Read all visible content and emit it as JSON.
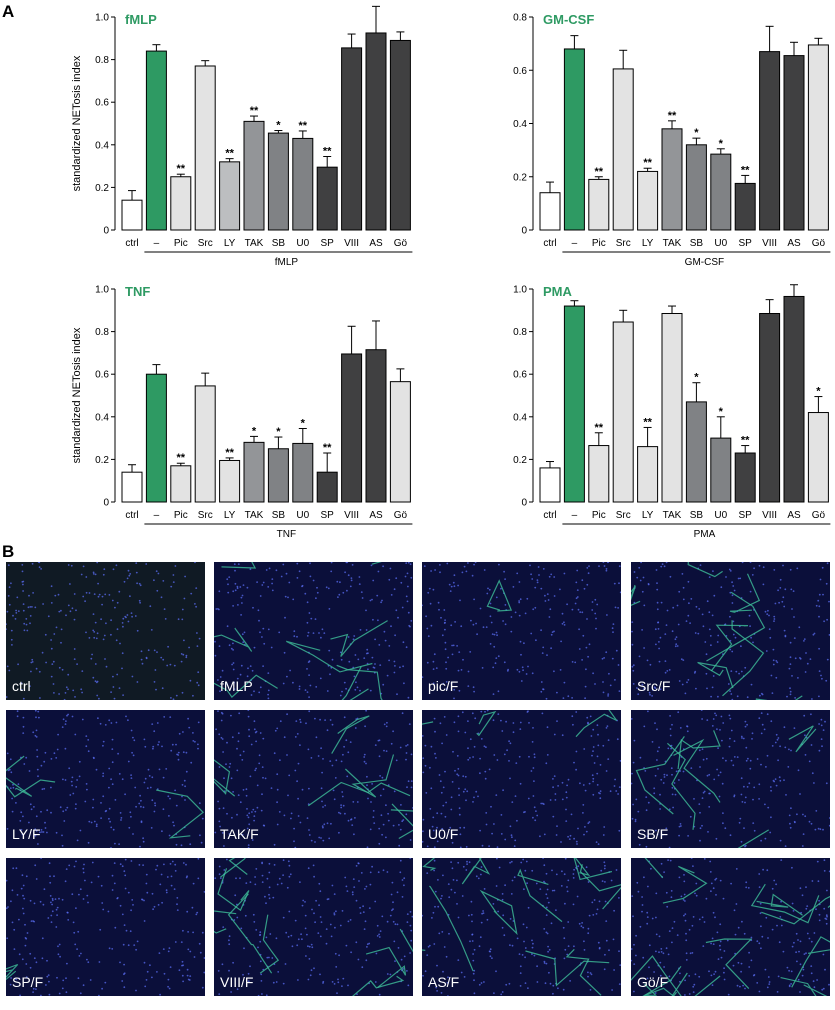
{
  "panel_a_letter": "A",
  "panel_b_letter": "B",
  "colors": {
    "green": "#2e9a63",
    "white_bar": "#ffffff",
    "light_gray": "#e3e3e3",
    "mid_gray": "#bcbec0",
    "gray": "#939598",
    "dark_gray": "#808285",
    "darker_gray": "#404041",
    "title_green": "#2e9a63"
  },
  "chart_data": [
    {
      "type": "bar",
      "title": "fMLP",
      "ylabel": "standardized NETosis index",
      "xgroup_label": "fMLP",
      "ylim": [
        0,
        1.0
      ],
      "yticks": [
        "0",
        "0.2",
        "0.4",
        "0.6",
        "0.8",
        "1.0"
      ],
      "categories": [
        "ctrl",
        "–",
        "Pic",
        "Src",
        "LY",
        "TAK",
        "SB",
        "U0",
        "SP",
        "VIII",
        "AS",
        "Gö"
      ],
      "values": [
        0.14,
        0.84,
        0.25,
        0.77,
        0.32,
        0.51,
        0.455,
        0.43,
        0.295,
        0.855,
        0.925,
        0.89
      ],
      "errors": [
        0.045,
        0.03,
        0.012,
        0.025,
        0.015,
        0.025,
        0.012,
        0.035,
        0.05,
        0.065,
        0.125,
        0.04
      ],
      "significance": [
        "",
        "",
        "**",
        "",
        "**",
        "**",
        "*",
        "**",
        "**",
        "",
        "",
        ""
      ],
      "bar_colors": [
        "white_bar",
        "green",
        "light_gray",
        "light_gray",
        "mid_gray",
        "gray",
        "dark_gray",
        "dark_gray",
        "darker_gray",
        "darker_gray",
        "darker_gray",
        "darker_gray"
      ]
    },
    {
      "type": "bar",
      "title": "GM-CSF",
      "ylabel": "",
      "xgroup_label": "GM-CSF",
      "ylim": [
        0,
        0.8
      ],
      "yticks": [
        "0",
        "0.2",
        "0.4",
        "0.6",
        "0.8"
      ],
      "categories": [
        "ctrl",
        "–",
        "Pic",
        "Src",
        "LY",
        "TAK",
        "SB",
        "U0",
        "SP",
        "VIII",
        "AS",
        "Gö"
      ],
      "values": [
        0.14,
        0.68,
        0.19,
        0.605,
        0.22,
        0.38,
        0.32,
        0.285,
        0.175,
        0.67,
        0.655,
        0.695
      ],
      "errors": [
        0.04,
        0.05,
        0.01,
        0.07,
        0.012,
        0.03,
        0.025,
        0.02,
        0.03,
        0.095,
        0.05,
        0.025
      ],
      "significance": [
        "",
        "",
        "**",
        "",
        "**",
        "**",
        "*",
        "*",
        "**",
        "",
        "",
        ""
      ],
      "bar_colors": [
        "white_bar",
        "green",
        "light_gray",
        "light_gray",
        "light_gray",
        "gray",
        "dark_gray",
        "dark_gray",
        "darker_gray",
        "darker_gray",
        "darker_gray",
        "light_gray"
      ]
    },
    {
      "type": "bar",
      "title": "TNF",
      "ylabel": "standardized NETosis index",
      "xgroup_label": "TNF",
      "ylim": [
        0,
        1.0
      ],
      "yticks": [
        "0",
        "0.2",
        "0.4",
        "0.6",
        "0.8",
        "1.0"
      ],
      "categories": [
        "ctrl",
        "–",
        "Pic",
        "Src",
        "LY",
        "TAK",
        "SB",
        "U0",
        "SP",
        "VIII",
        "AS",
        "Gö"
      ],
      "values": [
        0.14,
        0.6,
        0.17,
        0.545,
        0.195,
        0.28,
        0.25,
        0.275,
        0.14,
        0.695,
        0.715,
        0.565
      ],
      "errors": [
        0.035,
        0.045,
        0.012,
        0.06,
        0.012,
        0.028,
        0.055,
        0.07,
        0.09,
        0.13,
        0.135,
        0.06
      ],
      "significance": [
        "",
        "",
        "**",
        "",
        "**",
        "*",
        "*",
        "*",
        "**",
        "",
        "",
        ""
      ],
      "bar_colors": [
        "white_bar",
        "green",
        "light_gray",
        "light_gray",
        "light_gray",
        "gray",
        "dark_gray",
        "dark_gray",
        "darker_gray",
        "darker_gray",
        "darker_gray",
        "light_gray"
      ]
    },
    {
      "type": "bar",
      "title": "PMA",
      "ylabel": "",
      "xgroup_label": "PMA",
      "ylim": [
        0,
        1.0
      ],
      "yticks": [
        "0",
        "0.2",
        "0.4",
        "0.6",
        "0.8",
        "1.0"
      ],
      "categories": [
        "ctrl",
        "–",
        "Pic",
        "Src",
        "LY",
        "TAK",
        "SB",
        "U0",
        "SP",
        "VIII",
        "AS",
        "Gö"
      ],
      "values": [
        0.16,
        0.92,
        0.265,
        0.845,
        0.26,
        0.885,
        0.47,
        0.3,
        0.23,
        0.885,
        0.965,
        0.42
      ],
      "errors": [
        0.03,
        0.025,
        0.06,
        0.055,
        0.09,
        0.035,
        0.09,
        0.1,
        0.035,
        0.065,
        0.055,
        0.075
      ],
      "significance": [
        "",
        "",
        "**",
        "",
        "**",
        "",
        "*",
        "*",
        "**",
        "",
        "",
        "*"
      ],
      "bar_colors": [
        "white_bar",
        "green",
        "light_gray",
        "light_gray",
        "light_gray",
        "light_gray",
        "dark_gray",
        "dark_gray",
        "darker_gray",
        "darker_gray",
        "darker_gray",
        "light_gray"
      ]
    }
  ],
  "micrographs": [
    {
      "label": "ctrl"
    },
    {
      "label": "fMLP"
    },
    {
      "label": "pic/F"
    },
    {
      "label": "Src/F"
    },
    {
      "label": "LY/F"
    },
    {
      "label": "TAK/F"
    },
    {
      "label": "U0/F"
    },
    {
      "label": "SB/F"
    },
    {
      "label": "SP/F"
    },
    {
      "label": "VIII/F"
    },
    {
      "label": "AS/F"
    },
    {
      "label": "Gö/F"
    }
  ]
}
